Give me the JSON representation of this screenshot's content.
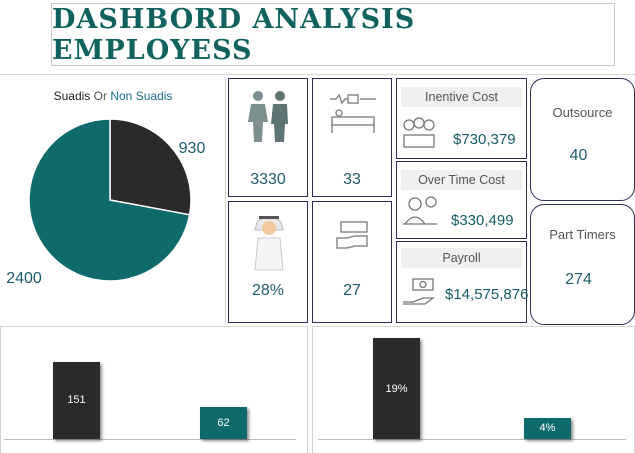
{
  "header": {
    "title": "DASHBORD ANALYSIS EMPLOYESS"
  },
  "pie": {
    "legend_a": "Suadis",
    "legend_sep": "Or",
    "legend_b": "Non Suadis"
  },
  "kpis": {
    "employees": "3330",
    "sick": "33",
    "saudization": "28%",
    "absence": "27"
  },
  "costs": {
    "incentive": {
      "label": "Inentive Cost",
      "value": "$730,379"
    },
    "overtime": {
      "label": "Over Time Cost",
      "value": "$330,499"
    },
    "payroll": {
      "label": "Payroll",
      "value": "$14,575,876"
    }
  },
  "side": {
    "outsource": {
      "label": "Outsource",
      "value": "40"
    },
    "parttimers": {
      "label": "Part Timers",
      "value": "274"
    }
  },
  "colors": {
    "teal": "#0f6b6b",
    "dark": "#2a2a2a",
    "accent": "#1a5a6e"
  },
  "chart_data": [
    {
      "type": "pie",
      "title": "Suadis Or Non Suadis",
      "categories": [
        "Suadis",
        "Non Suadis"
      ],
      "values": [
        930,
        2400
      ],
      "data_labels": [
        "930",
        "2400"
      ]
    },
    {
      "type": "bar",
      "categories": [
        "",
        ""
      ],
      "values": [
        151,
        62
      ],
      "data_labels": [
        "151",
        "62"
      ],
      "ylim": [
        0,
        160
      ]
    },
    {
      "type": "bar",
      "categories": [
        "",
        ""
      ],
      "values": [
        19,
        4
      ],
      "data_labels": [
        "19%",
        "4%"
      ],
      "ylim": [
        0,
        20
      ]
    }
  ]
}
